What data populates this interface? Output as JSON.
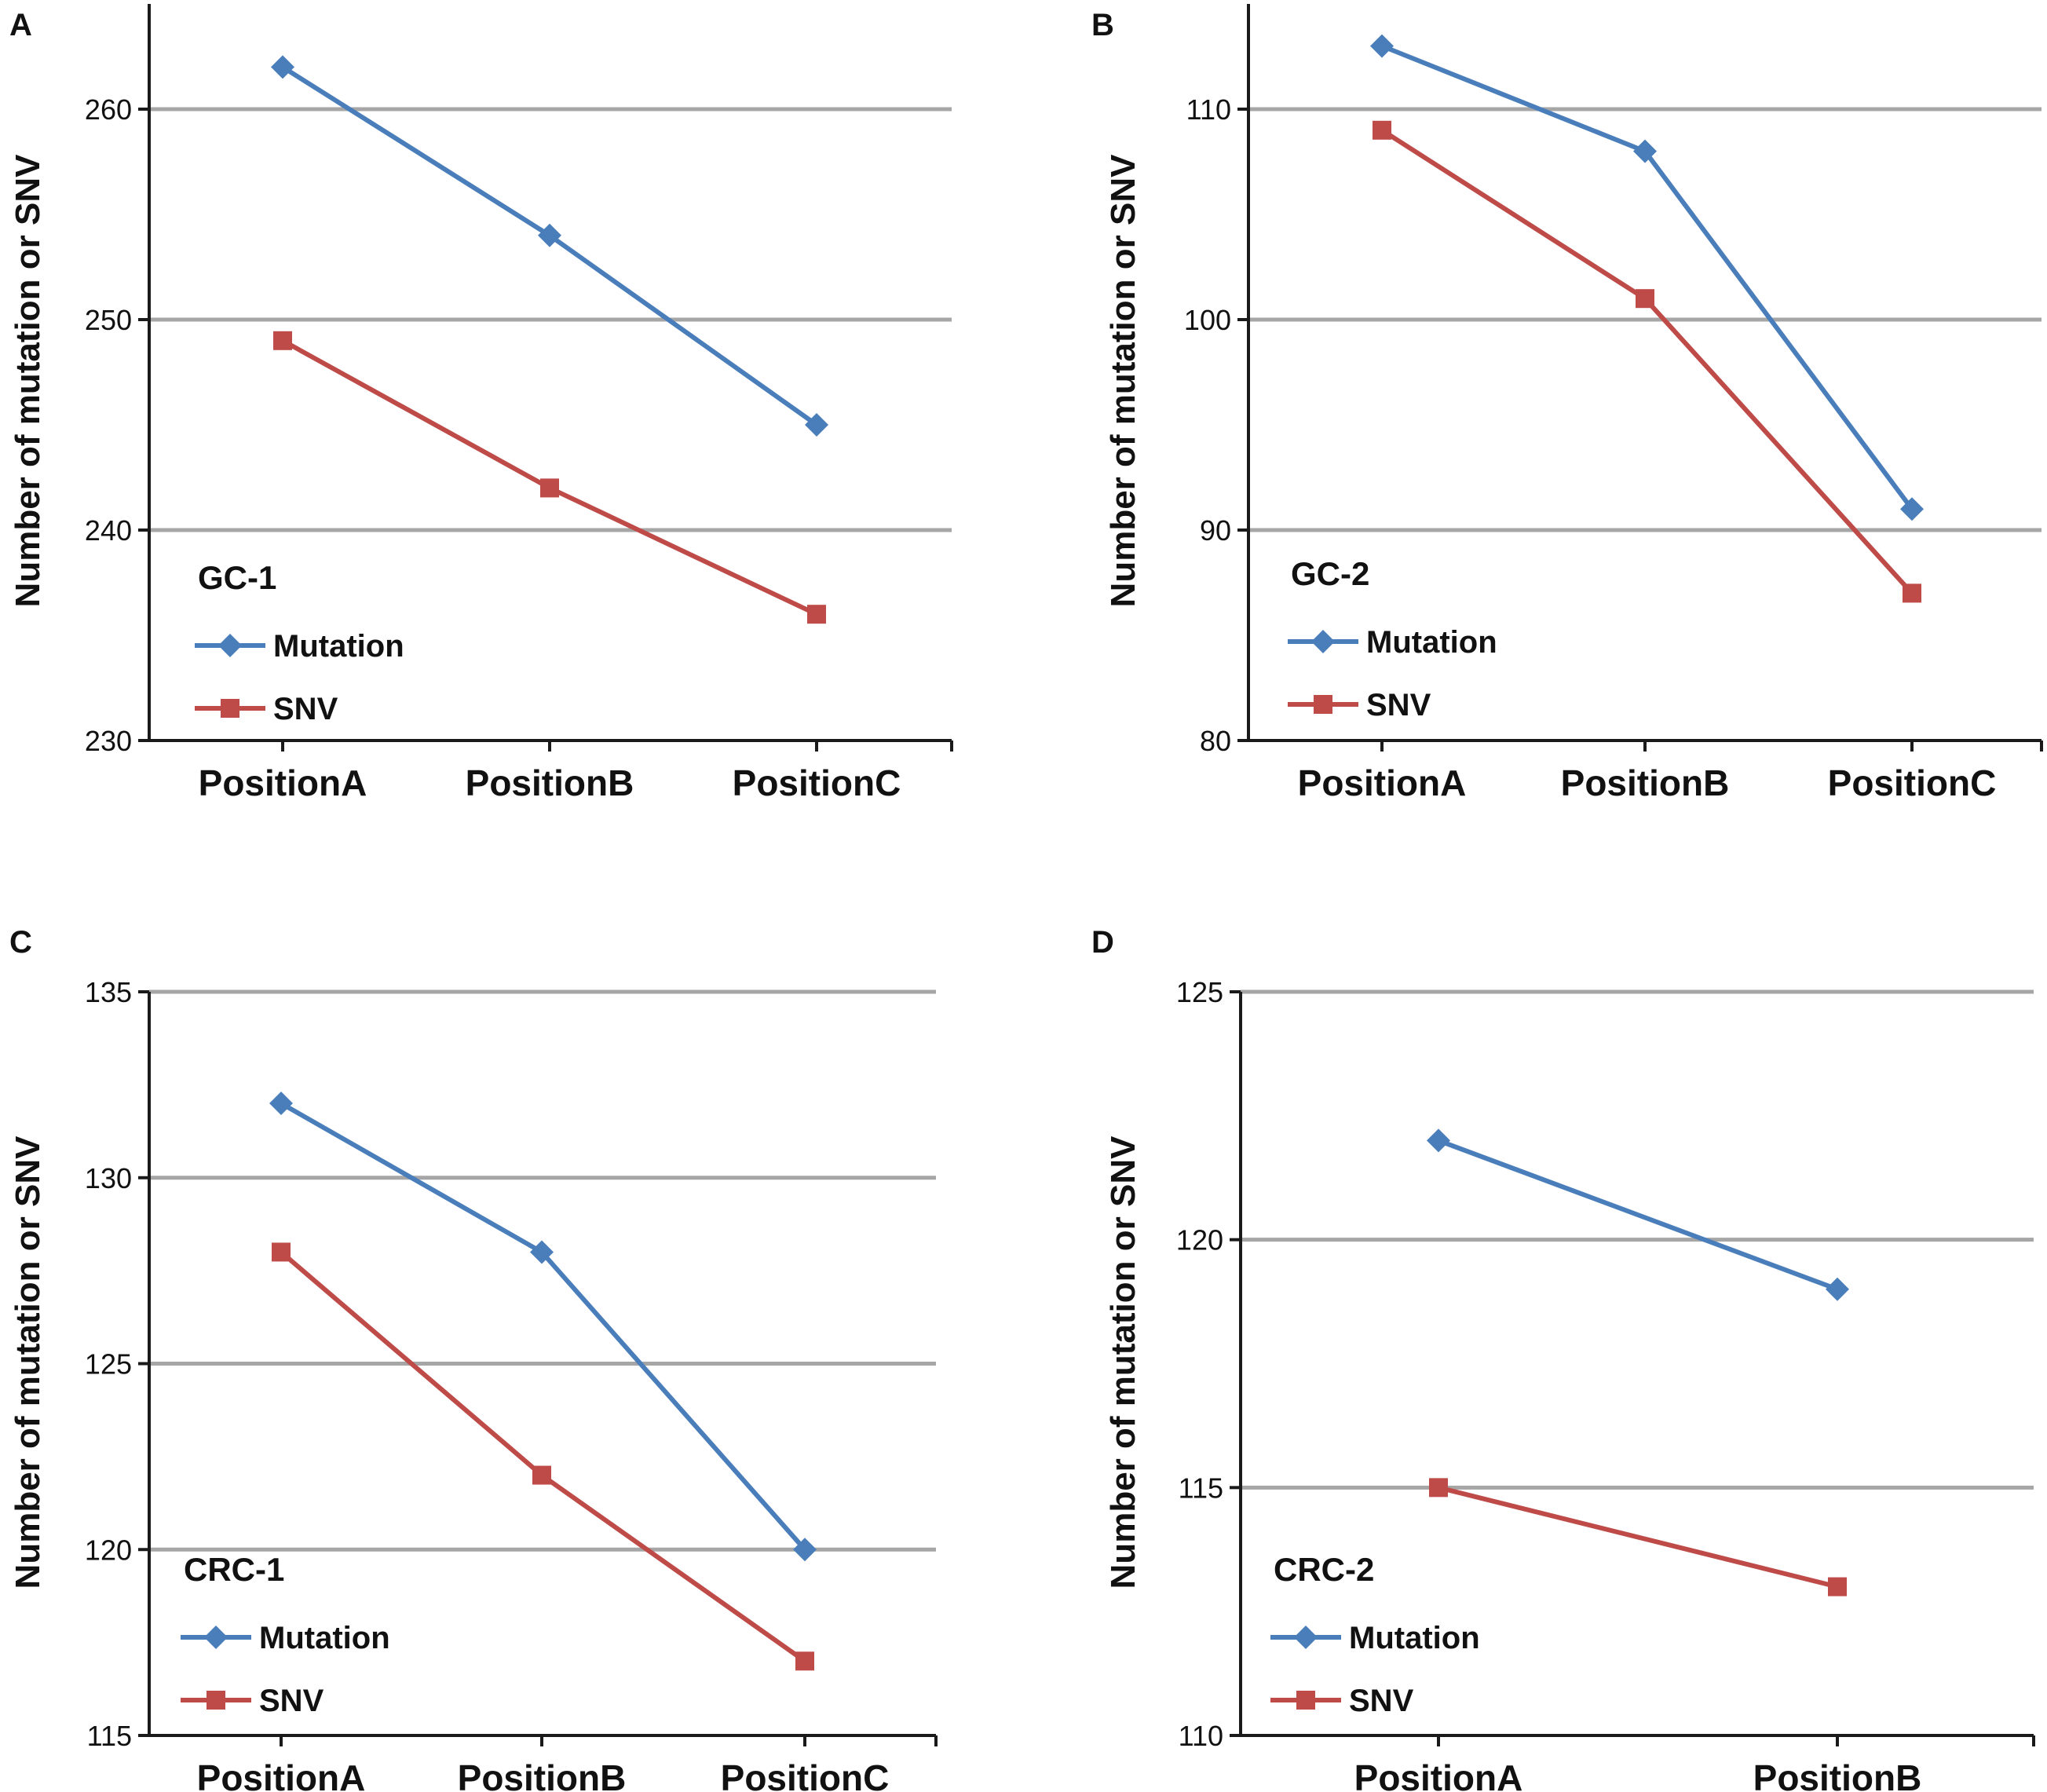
{
  "figure": {
    "y_label": "Number of mutation or SNV"
  },
  "colors": {
    "mutation": "#4A7EBB",
    "snv": "#BE4B48",
    "grid": "#A6A6A6",
    "axis": "#1a1a1a",
    "text": "#111111"
  },
  "chart_data": [
    {
      "panel_label": "A",
      "type": "line",
      "title": "GC-1",
      "categories": [
        "PositionA",
        "PositionB",
        "PositionC"
      ],
      "series": [
        {
          "name": "Mutation",
          "marker": "diamond",
          "values": [
            262,
            254,
            245
          ]
        },
        {
          "name": "SNV",
          "marker": "square",
          "values": [
            249,
            242,
            236
          ]
        }
      ],
      "ylabel": "Number of mutation or SNV",
      "xlabel": "",
      "ylim": [
        230,
        265
      ],
      "yticks": [
        230,
        240,
        250,
        260
      ],
      "gridlines": [
        240,
        250,
        260
      ],
      "legend_position": "bottom-left"
    },
    {
      "panel_label": "B",
      "type": "line",
      "title": "GC-2",
      "categories": [
        "PositionA",
        "PositionB",
        "PositionC"
      ],
      "series": [
        {
          "name": "Mutation",
          "marker": "diamond",
          "values": [
            113,
            108,
            91
          ]
        },
        {
          "name": "SNV",
          "marker": "square",
          "values": [
            109,
            101,
            87
          ]
        }
      ],
      "ylabel": "Number of mutation or SNV",
      "xlabel": "",
      "ylim": [
        80,
        115
      ],
      "yticks": [
        80,
        90,
        100,
        110
      ],
      "gridlines": [
        90,
        100,
        110
      ],
      "legend_position": "bottom-left"
    },
    {
      "panel_label": "C",
      "type": "line",
      "title": "CRC-1",
      "categories": [
        "PositionA",
        "PositionB",
        "PositionC"
      ],
      "series": [
        {
          "name": "Mutation",
          "marker": "diamond",
          "values": [
            132,
            128,
            120
          ]
        },
        {
          "name": "SNV",
          "marker": "square",
          "values": [
            128,
            122,
            117
          ]
        }
      ],
      "ylabel": "Number of mutation or SNV",
      "xlabel": "",
      "ylim": [
        115,
        135
      ],
      "yticks": [
        115,
        120,
        125,
        130,
        135
      ],
      "gridlines": [
        120,
        125,
        130,
        135
      ],
      "legend_position": "bottom-left"
    },
    {
      "panel_label": "D",
      "type": "line",
      "title": "CRC-2",
      "categories": [
        "PositionA",
        "PositionB"
      ],
      "series": [
        {
          "name": "Mutation",
          "marker": "diamond",
          "values": [
            122,
            119
          ]
        },
        {
          "name": "SNV",
          "marker": "square",
          "values": [
            115,
            113
          ]
        }
      ],
      "ylabel": "Number of mutation or SNV",
      "xlabel": "",
      "ylim": [
        110,
        125
      ],
      "yticks": [
        110,
        115,
        120,
        125
      ],
      "gridlines": [
        115,
        120,
        125
      ],
      "legend_position": "bottom-left"
    }
  ]
}
